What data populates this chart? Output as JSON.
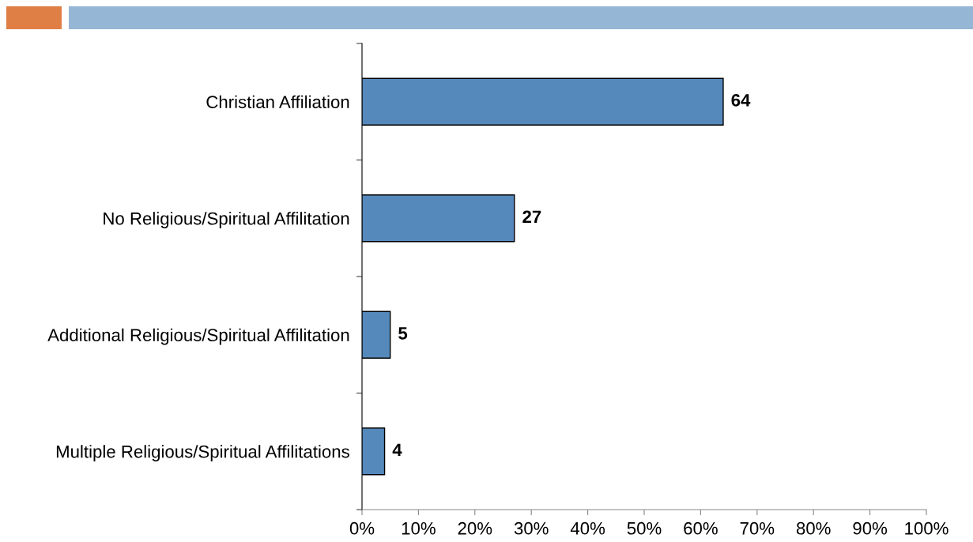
{
  "chart_data": {
    "type": "bar",
    "orientation": "horizontal",
    "categories": [
      "Christian Affiliation",
      "No Religious/Spiritual Affilitation",
      "Additional Religious/Spiritual Affilitation",
      "Multiple Religious/Spiritual Affilitations"
    ],
    "values": [
      64,
      27,
      5,
      4
    ],
    "color": "#5589bb",
    "data_labels": true,
    "xlim": [
      0,
      100
    ],
    "xticks": [
      {
        "value": 0,
        "label": "0%"
      },
      {
        "value": 10,
        "label": "10%"
      },
      {
        "value": 20,
        "label": "20%"
      },
      {
        "value": 30,
        "label": "30%"
      },
      {
        "value": 40,
        "label": "40%"
      },
      {
        "value": 50,
        "label": "50%"
      },
      {
        "value": 60,
        "label": "60%"
      },
      {
        "value": 70,
        "label": "70%"
      },
      {
        "value": 80,
        "label": "80%"
      },
      {
        "value": 90,
        "label": "90%"
      },
      {
        "value": 100,
        "label": "100%"
      }
    ],
    "grid": false,
    "legend": false
  }
}
